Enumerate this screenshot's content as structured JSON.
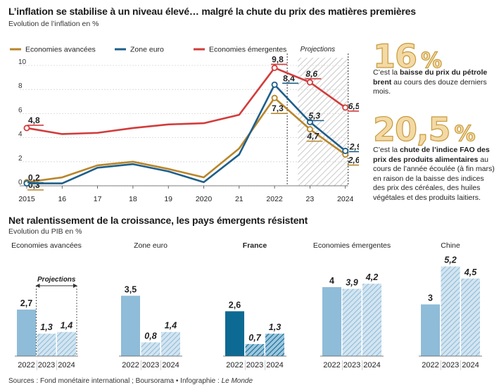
{
  "top": {
    "title": "L’inflation se stabilise à un niveau élevé… malgré la chute du prix des matières premières",
    "subtitle": "Evolution de l’inflation en %",
    "projections_label": "Projections"
  },
  "kpis": [
    {
      "value": "16",
      "unit": "%",
      "text_pre": "C’est la ",
      "text_bold": "baisse du prix du pétrole brent",
      "text_post": " au cours des douze derniers mois."
    },
    {
      "value": "20,5",
      "unit": "%",
      "text_pre": "C’est la ",
      "text_bold": "chute de l’indice FAO des prix des produits alimentaires",
      "text_post": " au cours de l’année écoulée (à fin mars) en raison de la baisse des indices des prix des céréales, des huiles végétales et des produits laitiers."
    }
  ],
  "bottom": {
    "title": "Net ralentissement de la croissance, les pays émergents résistent",
    "subtitle": "Evolution du PIB en %",
    "projections_label": "Projections"
  },
  "source": {
    "text": "Sources : Fond monétaire international ; Boursorama • Infographie : ",
    "credit": "Le Monde"
  },
  "chart_data": [
    {
      "type": "line",
      "x": [
        2015,
        2016,
        2017,
        2018,
        2019,
        2020,
        2021,
        2022,
        2023,
        2024
      ],
      "x_tick_labels": [
        "2015",
        "16",
        "17",
        "18",
        "19",
        "2020",
        "21",
        "2022",
        "23",
        "2024"
      ],
      "y_tick_labels": [
        "0",
        "2",
        "4",
        "6",
        "8",
        "10"
      ],
      "ylim": [
        0,
        10
      ],
      "grid": true,
      "legend_position": "top",
      "projection_from": 2022,
      "series": [
        {
          "name": "Economies avancées",
          "color": "#b8862a",
          "values": [
            0.3,
            0.7,
            1.7,
            2.0,
            1.4,
            0.7,
            3.1,
            7.3,
            4.7,
            2.6
          ],
          "labels": {
            "0": "0,3",
            "7": "7,3",
            "8": "4,7",
            "9": "2,6"
          }
        },
        {
          "name": "Zone euro",
          "color": "#1e5f8a",
          "values": [
            0.2,
            0.2,
            1.5,
            1.8,
            1.2,
            0.3,
            2.6,
            8.4,
            5.3,
            2.9
          ],
          "labels": {
            "0": "0,2",
            "7": "8,4",
            "8": "5,3",
            "9": "2,9"
          }
        },
        {
          "name": "Economies émergentes",
          "color": "#d23c3c",
          "values": [
            4.8,
            4.3,
            4.4,
            4.8,
            5.1,
            5.2,
            5.9,
            9.8,
            8.6,
            6.5
          ],
          "labels": {
            "0": "4,8",
            "7": "9,8",
            "8": "8,6",
            "9": "6,5"
          }
        }
      ]
    },
    {
      "type": "bar",
      "ylim": [
        0,
        5.5
      ],
      "groups": [
        {
          "name": "Economies avancées",
          "bold": false,
          "categories": [
            "2022",
            "2023",
            "2024"
          ],
          "values": [
            2.7,
            1.3,
            1.4
          ],
          "labels": [
            "2,7",
            "1,3",
            "1,4"
          ],
          "projected": [
            false,
            true,
            true
          ],
          "color": "#8fbcd8"
        },
        {
          "name": "Zone euro",
          "bold": false,
          "categories": [
            "2022",
            "2023",
            "2024"
          ],
          "values": [
            3.5,
            0.8,
            1.4
          ],
          "labels": [
            "3,5",
            "0,8",
            "1,4"
          ],
          "projected": [
            false,
            true,
            true
          ],
          "color": "#8fbcd8"
        },
        {
          "name": "France",
          "bold": true,
          "categories": [
            "2022",
            "2023",
            "2024"
          ],
          "values": [
            2.6,
            0.7,
            1.3
          ],
          "labels": [
            "2,6",
            "0,7",
            "1,3"
          ],
          "projected": [
            false,
            true,
            true
          ],
          "color": "#0d6a93"
        },
        {
          "name": "Economies émergentes",
          "bold": false,
          "categories": [
            "2022",
            "2023",
            "2024"
          ],
          "values": [
            4.0,
            3.9,
            4.2
          ],
          "labels": [
            "4",
            "3,9",
            "4,2"
          ],
          "projected": [
            false,
            true,
            true
          ],
          "color": "#8fbcd8"
        },
        {
          "name": "Chine",
          "bold": false,
          "categories": [
            "2022",
            "2023",
            "2024"
          ],
          "values": [
            3.0,
            5.2,
            4.5
          ],
          "labels": [
            "3",
            "5,2",
            "4,5"
          ],
          "projected": [
            false,
            true,
            true
          ],
          "color": "#8fbcd8"
        }
      ]
    }
  ]
}
